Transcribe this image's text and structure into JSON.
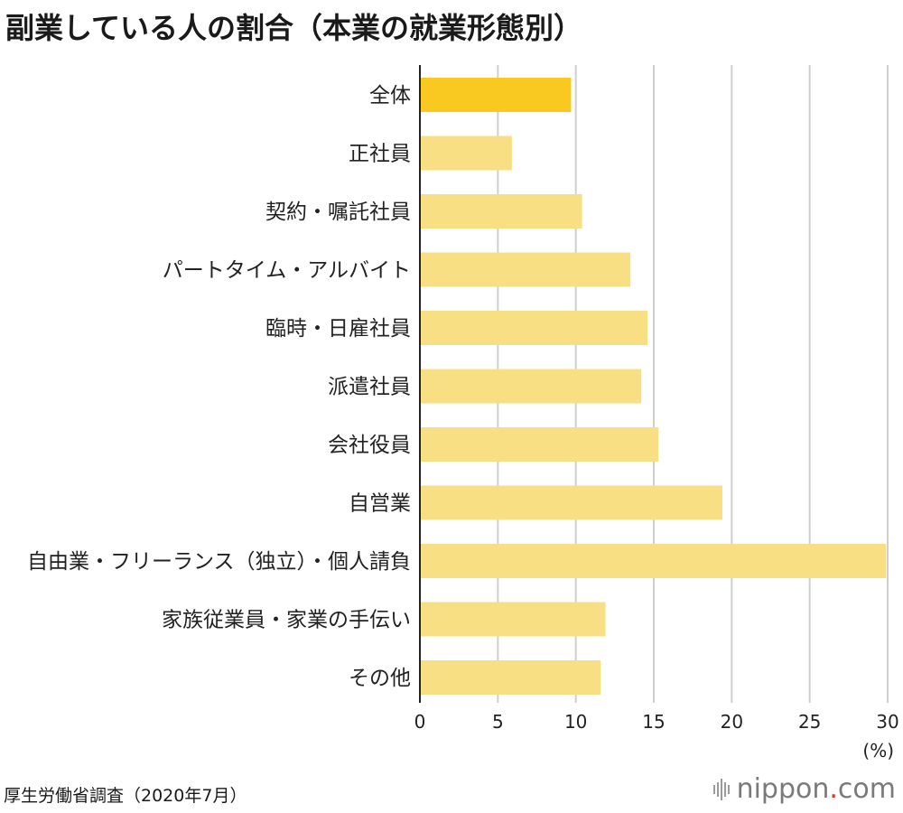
{
  "title": "副業している人の割合（本業の就業形態別）",
  "source": "厚生労働省調査（2020年7月）",
  "brand": {
    "name": "nippon",
    "dot": ".",
    "suffix": "com"
  },
  "colors": {
    "highlight": "#f9c921",
    "bar": "#f9df83",
    "grid": "#cfcfcf",
    "axis": "#222222"
  },
  "chart_data": {
    "type": "bar",
    "orientation": "horizontal",
    "categories": [
      "全体",
      "正社員",
      "契約・嘱託社員",
      "パートタイム・アルバイト",
      "臨時・日雇社員",
      "派遣社員",
      "会社役員",
      "自営業",
      "自由業・フリーランス（独立）・個人請負",
      "家族従業員・家業の手伝い",
      "その他"
    ],
    "values": [
      9.7,
      5.9,
      10.4,
      13.5,
      14.6,
      14.2,
      15.3,
      19.4,
      29.9,
      11.9,
      11.6
    ],
    "highlight_index": 0,
    "xlim": [
      0,
      30
    ],
    "xticks": [
      0,
      5,
      10,
      15,
      20,
      25,
      30
    ],
    "xunit": "(%)",
    "grid": true
  }
}
